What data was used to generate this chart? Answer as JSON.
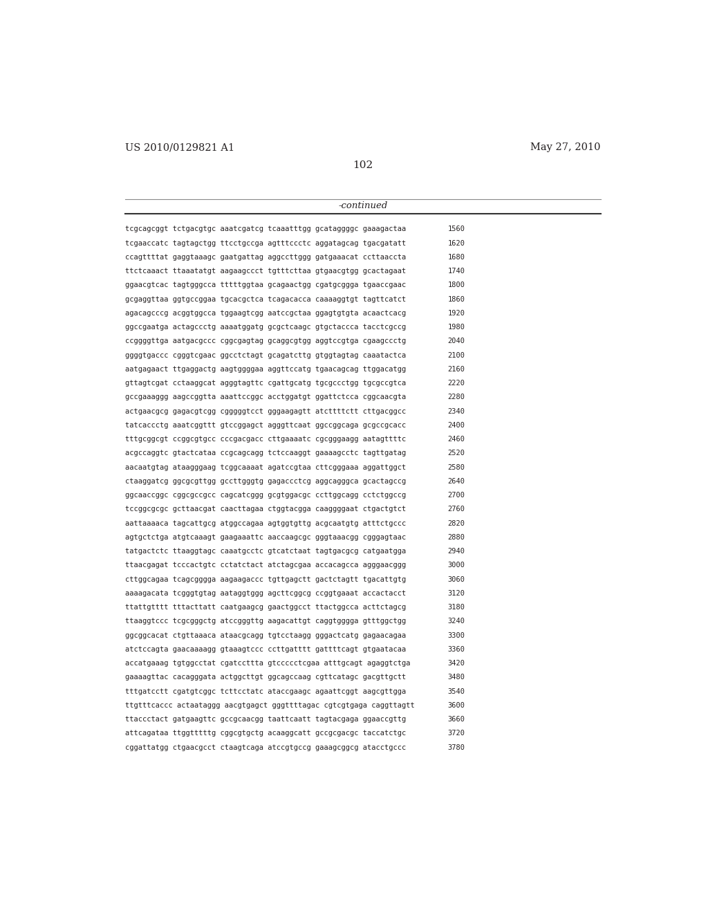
{
  "header_left": "US 2010/0129821 A1",
  "header_right": "May 27, 2010",
  "page_number": "102",
  "continued_label": "-continued",
  "background_color": "#ffffff",
  "text_color": "#231f20",
  "font_size": 7.5,
  "header_font_size": 10.5,
  "page_num_font_size": 11,
  "continued_font_size": 9.5,
  "lines": [
    [
      "tcgcagcggt tctgacgtgc aaatcgatcg tcaaatttgg gcataggggc gaaagactaa",
      "1560"
    ],
    [
      "tcgaaccatc tagtagctgg ttcctgccga agtttccctc aggatagcag tgacgatatt",
      "1620"
    ],
    [
      "ccagttttat gaggtaaagc gaatgattag aggccttggg gatgaaacat ccttaaccta",
      "1680"
    ],
    [
      "ttctcaaact ttaaatatgt aagaagccct tgtttcttaa gtgaacgtgg gcactagaat",
      "1740"
    ],
    [
      "ggaacgtcac tagtgggcca tttttggtaa gcagaactgg cgatgcggga tgaaccgaac",
      "1800"
    ],
    [
      "gcgaggttaa ggtgccggaa tgcacgctca tcagacacca caaaaggtgt tagttcatct",
      "1860"
    ],
    [
      "agacagcccg acggtggcca tggaagtcgg aatccgctaa ggagtgtgta acaactcacg",
      "1920"
    ],
    [
      "ggccgaatga actagccctg aaaatggatg gcgctcaagc gtgctaccca tacctcgccg",
      "1980"
    ],
    [
      "ccggggttga aatgacgccc cggcgagtag gcaggcgtgg aggtccgtga cgaagccctg",
      "2040"
    ],
    [
      "ggggtgaccc cgggtcgaac ggcctctagt gcagatcttg gtggtagtag caaatactca",
      "2100"
    ],
    [
      "aatgagaact ttgaggactg aagtggggaa aggttccatg tgaacagcag ttggacatgg",
      "2160"
    ],
    [
      "gttagtcgat cctaaggcat agggtagttc cgattgcatg tgcgccctgg tgcgccgtca",
      "2220"
    ],
    [
      "gccgaaaggg aagccggtta aaattccggc acctggatgt ggattctcca cggcaacgta",
      "2280"
    ],
    [
      "actgaacgcg gagacgtcgg cgggggtcct gggaagagtt atcttttctt cttgacggcc",
      "2340"
    ],
    [
      "tatcaccctg aaatcggttt gtccggagct agggttcaat ggccggcaga gcgccgcacc",
      "2400"
    ],
    [
      "tttgcggcgt ccggcgtgcc cccgacgacc cttgaaaatc cgcgggaagg aatagttttc",
      "2460"
    ],
    [
      "acgccaggtc gtactcataa ccgcagcagg tctccaaggt gaaaagcctc tagttgatag",
      "2520"
    ],
    [
      "aacaatgtag ataagggaag tcggcaaaat agatccgtaa cttcgggaaa aggattggct",
      "2580"
    ],
    [
      "ctaaggatcg ggcgcgttgg gccttgggtg gagaccctcg aggcagggca gcactagccg",
      "2640"
    ],
    [
      "ggcaaccggc cggcgccgcc cagcatcggg gcgtggacgc ccttggcagg cctctggccg",
      "2700"
    ],
    [
      "tccggcgcgc gcttaacgat caacttagaa ctggtacgga caaggggaat ctgactgtct",
      "2760"
    ],
    [
      "aattaaaaca tagcattgcg atggccagaa agtggtgttg acgcaatgtg atttctgccc",
      "2820"
    ],
    [
      "agtgctctga atgtcaaagt gaagaaattc aaccaagcgc gggtaaacgg cgggagtaac",
      "2880"
    ],
    [
      "tatgactctc ttaaggtagc caaatgcctc gtcatctaat tagtgacgcg catgaatgga",
      "2940"
    ],
    [
      "ttaacgagat tcccactgtc cctatctact atctagcgaa accacagcca agggaacggg",
      "3000"
    ],
    [
      "cttggcagaa tcagcgggga aagaagaccc tgttgagctt gactctagtt tgacattgtg",
      "3060"
    ],
    [
      "aaaagacata tcgggtgtag aataggtggg agcttcggcg ccggtgaaat accactacct",
      "3120"
    ],
    [
      "ttattgtttt tttacttatt caatgaagcg gaactggcct ttactggcca acttctagcg",
      "3180"
    ],
    [
      "ttaaggtccc tcgcgggctg atccgggttg aagacattgt caggtgggga gtttggctgg",
      "3240"
    ],
    [
      "ggcggcacat ctgttaaaca ataacgcagg tgtcctaagg gggactcatg gagaacagaa",
      "3300"
    ],
    [
      "atctccagta gaacaaaagg gtaaagtccc ccttgatttt gattttcagt gtgaatacaa",
      "3360"
    ],
    [
      "accatgaaag tgtggcctat cgatccttta gtccccctcgaa atttgcagt agaggtctga",
      "3420"
    ],
    [
      "gaaaagttac cacagggata actggcttgt ggcagccaag cgttcatagc gacgttgctt",
      "3480"
    ],
    [
      "tttgatcctt cgatgtcggc tcttcctatc ataccgaagc agaattcggt aagcgttgga",
      "3540"
    ],
    [
      "ttgtttcaccc actaataggg aacgtgagct gggttttagac cgtcgtgaga caggttagtt",
      "3600"
    ],
    [
      "ttaccctact gatgaagttc gccgcaacgg taattcaatt tagtacgaga ggaaccgttg",
      "3660"
    ],
    [
      "attcagataa ttggtttttg cggcgtgctg acaaggcatt gccgcgacgc taccatctgc",
      "3720"
    ],
    [
      "cggattatgg ctgaacgcct ctaagtcaga atccgtgccg gaaagcggcg atacctgccc",
      "3780"
    ]
  ]
}
